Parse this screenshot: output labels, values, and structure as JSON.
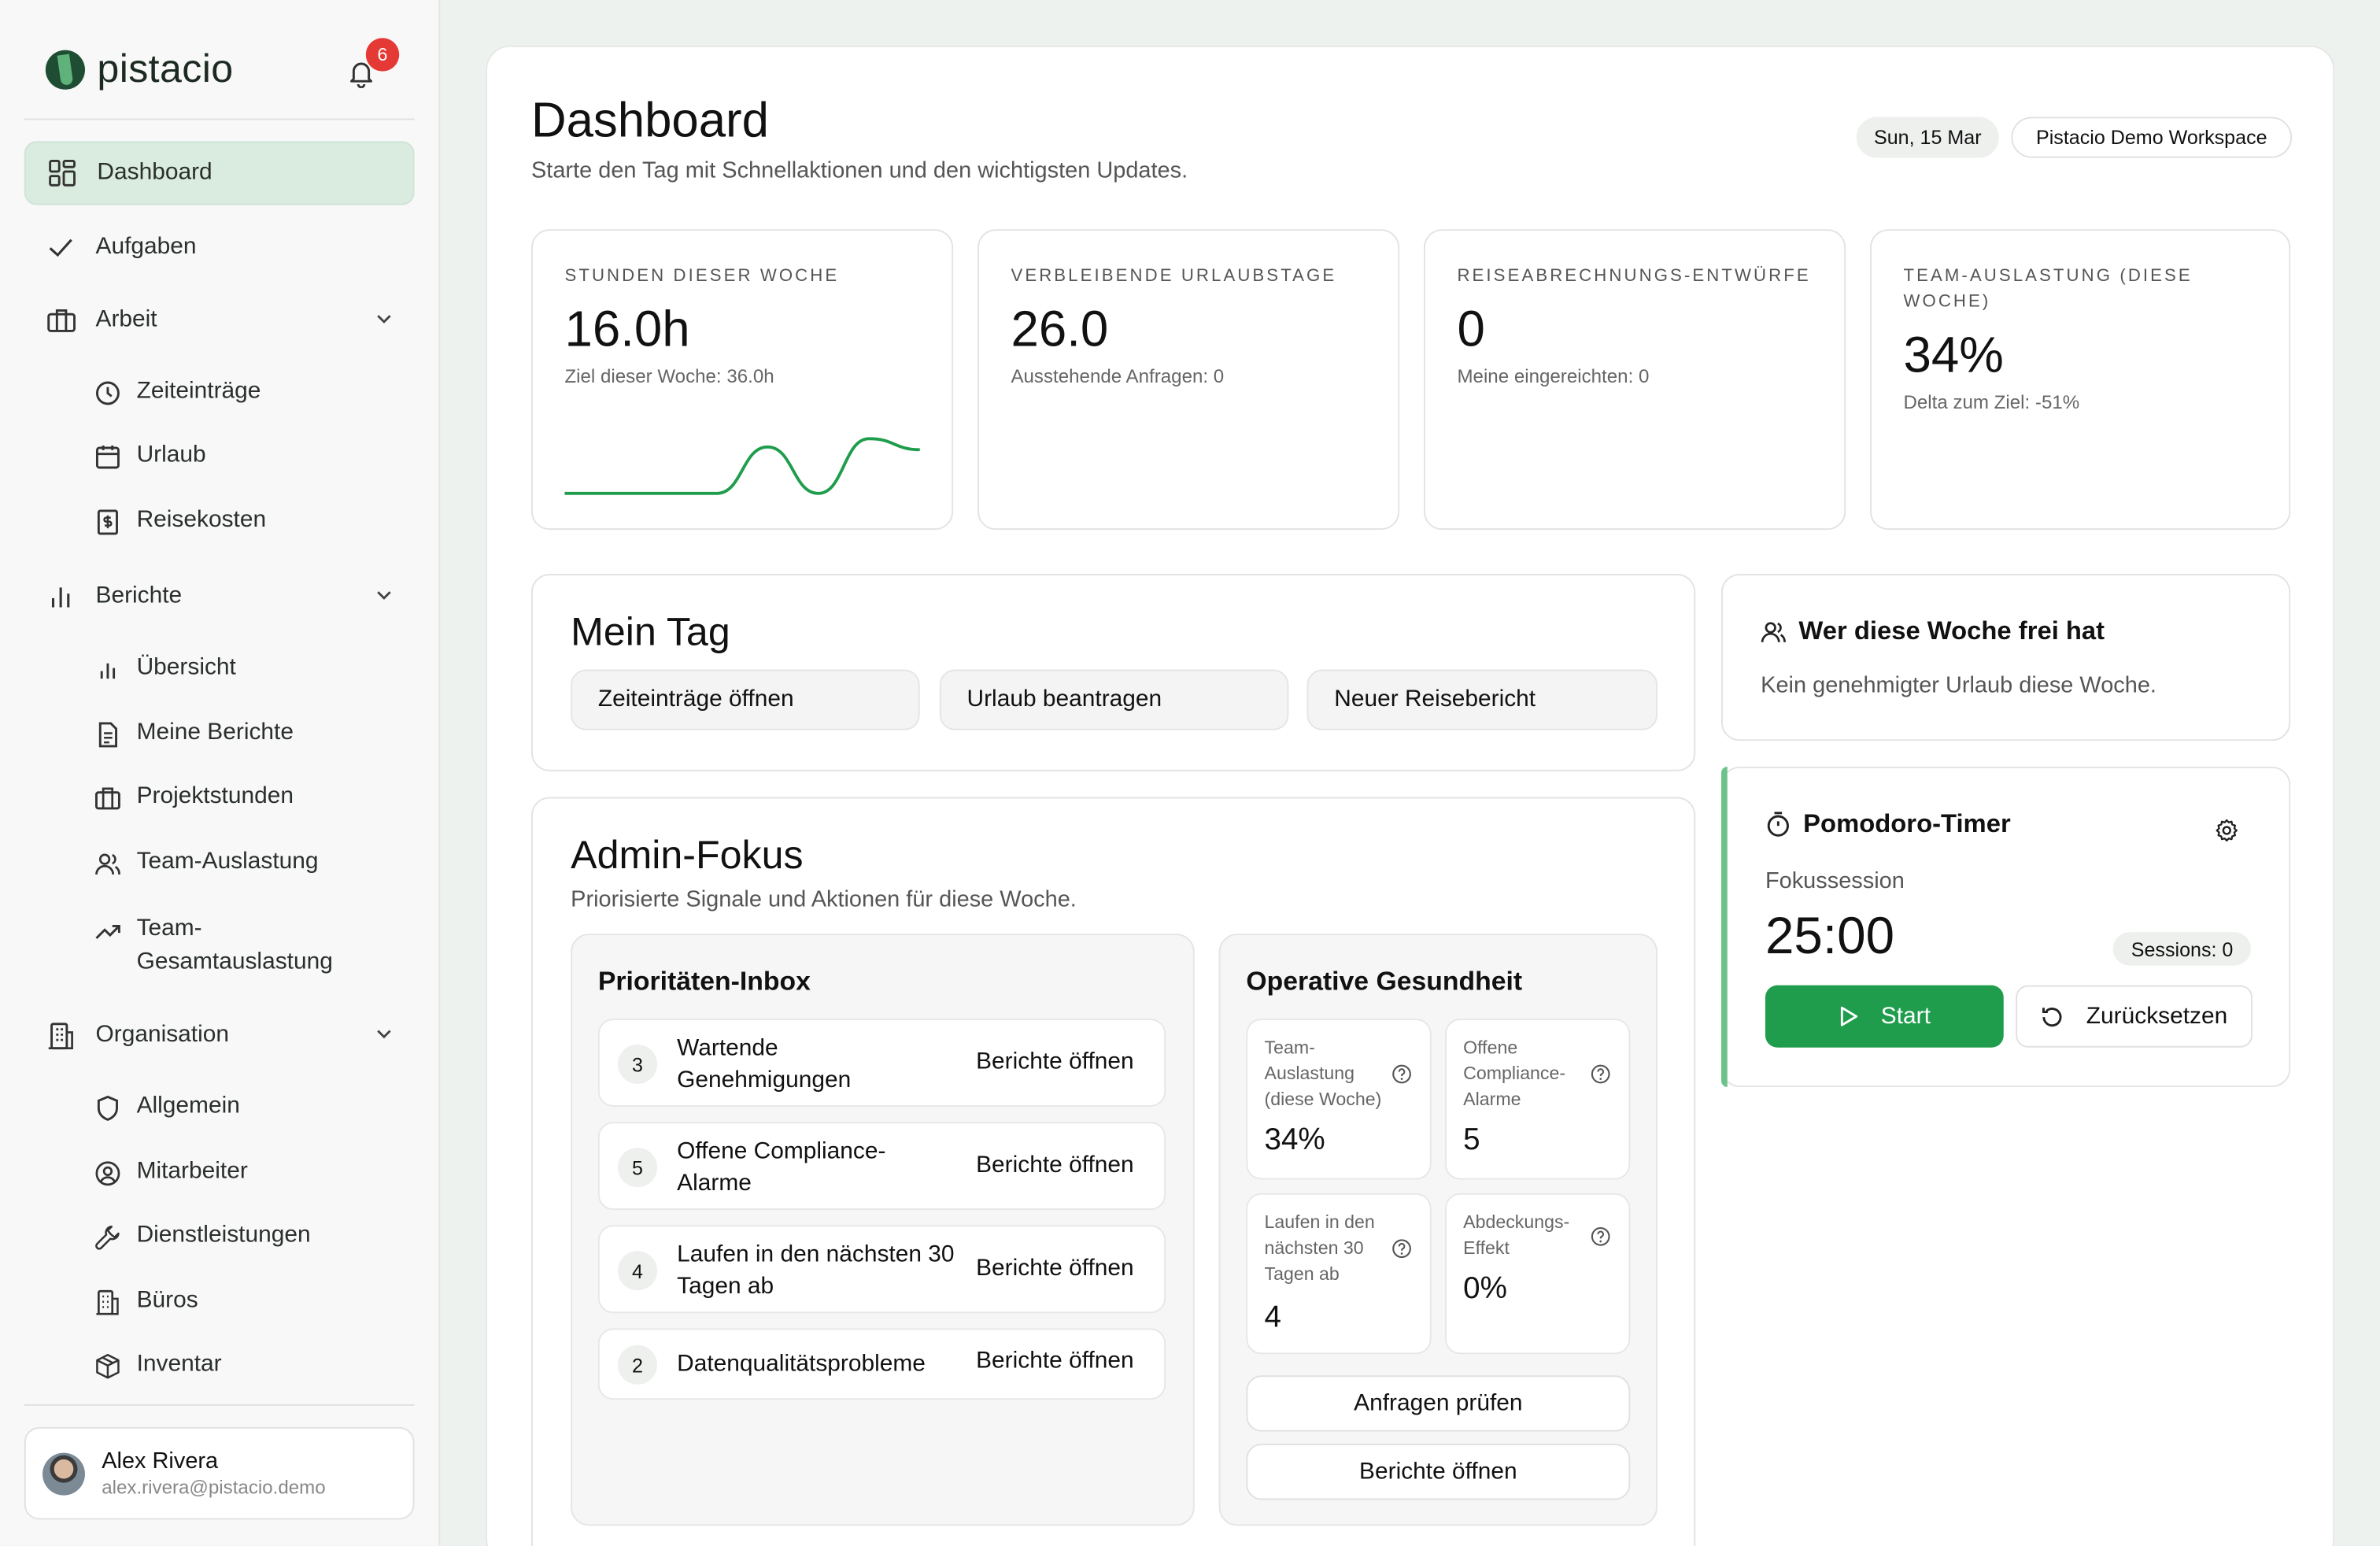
{
  "brand": {
    "name": "pistacio",
    "notifications": "6"
  },
  "nav": {
    "dashboard": "Dashboard",
    "tasks": "Aufgaben",
    "work": "Arbeit",
    "work_items": [
      "Zeiteinträge",
      "Urlaub",
      "Reisekosten"
    ],
    "reports": "Berichte",
    "report_items": [
      "Übersicht",
      "Meine Berichte",
      "Projektstunden",
      "Team-Auslastung",
      "Team-Gesamtauslastung"
    ],
    "org": "Organisation",
    "org_items": [
      "Allgemein",
      "Mitarbeiter",
      "Dienstleistungen",
      "Büros",
      "Inventar"
    ]
  },
  "user": {
    "name": "Alex Rivera",
    "email": "alex.rivera@pistacio.demo"
  },
  "header": {
    "title": "Dashboard",
    "subtitle": "Starte den Tag mit Schnellaktionen und den wichtigsten Updates.",
    "date": "Sun, 15 Mar",
    "workspace": "Pistacio Demo Workspace"
  },
  "stats": [
    {
      "label": "Stunden dieser Woche",
      "value": "16.0h",
      "note": "Ziel dieser Woche: 36.0h"
    },
    {
      "label": "Verbleibende Urlaubstage",
      "value": "26.0",
      "note": "Ausstehende Anfragen: 0"
    },
    {
      "label": "Reiseabrechnungs-Entwürfe",
      "value": "0",
      "note": "Meine eingereichten: 0"
    },
    {
      "label": "Team-Auslastung (diese Woche)",
      "value": "34%",
      "note": "Delta zum Ziel: -51%"
    }
  ],
  "my_day": {
    "title": "Mein Tag",
    "actions": [
      "Zeiteinträge öffnen",
      "Urlaub beantragen",
      "Neuer Reisebericht"
    ]
  },
  "admin": {
    "title": "Admin-Fokus",
    "subtitle": "Priorisierte Signale und Aktionen für diese Woche.",
    "inbox_title": "Prioritäten-Inbox",
    "inbox": [
      {
        "count": "3",
        "text": "Wartende Genehmigungen",
        "action": "Berichte öffnen"
      },
      {
        "count": "5",
        "text": "Offene Compliance-Alarme",
        "action": "Berichte öffnen"
      },
      {
        "count": "4",
        "text": "Laufen in den nächsten 30 Tagen ab",
        "action": "Berichte öffnen"
      },
      {
        "count": "2",
        "text": "Datenqualitätsprobleme",
        "action": "Berichte öffnen"
      }
    ],
    "health_title": "Operative Gesundheit",
    "metrics": [
      {
        "label": "Team-Auslastung (diese Woche)",
        "value": "34%"
      },
      {
        "label": "Offene Compliance-Alarme",
        "value": "5"
      },
      {
        "label": "Laufen in den nächsten 30 Tagen ab",
        "value": "4"
      },
      {
        "label": "Abdeckungs-Effekt",
        "value": "0%"
      }
    ],
    "review_button": "Anfragen prüfen",
    "reports_button": "Berichte öffnen"
  },
  "off_this_week": {
    "title": "Wer diese Woche frei hat",
    "empty": "Kein genehmigter Urlaub diese Woche."
  },
  "pomodoro": {
    "title": "Pomodoro-Timer",
    "mode": "Fokussession",
    "time": "25:00",
    "sessions": "Sessions: 0",
    "start": "Start",
    "reset": "Zurücksetzen",
    "accent": "#1f9d4c"
  },
  "sparkline_hours": [
    0,
    0,
    0,
    0,
    0.85,
    0,
    1,
    0.8
  ]
}
